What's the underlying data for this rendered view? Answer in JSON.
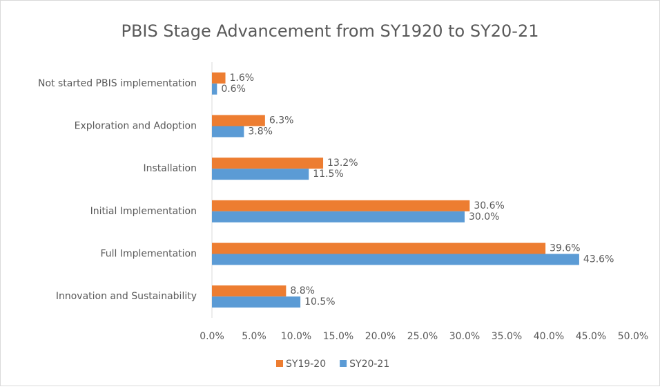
{
  "chart_data": {
    "type": "hbar",
    "title": "PBIS Stage Advancement from SY1920 to SY20-21",
    "categories": [
      "Not started PBIS implementation",
      "Exploration and Adoption",
      "Installation",
      "Initial Implementation",
      "Full Implementation",
      "Innovation and Sustainability"
    ],
    "series": [
      {
        "name": "SY19-20",
        "color": "#ed7d31",
        "values": [
          1.6,
          6.3,
          13.2,
          30.6,
          39.6,
          8.8
        ],
        "value_labels": [
          "1.6%",
          "6.3%",
          "13.2%",
          "30.6%",
          "39.6%",
          "8.8%"
        ]
      },
      {
        "name": "SY20-21",
        "color": "#5b9bd5",
        "values": [
          0.6,
          3.8,
          11.5,
          30.0,
          43.6,
          10.5
        ],
        "value_labels": [
          "0.6%",
          "3.8%",
          "11.5%",
          "30.0%",
          "43.6%",
          "10.5%"
        ]
      }
    ],
    "xlim": [
      0,
      50
    ],
    "xticks": [
      {
        "value": 0,
        "label": "0.0%"
      },
      {
        "value": 5,
        "label": "5.0%"
      },
      {
        "value": 10,
        "label": "10.0%"
      },
      {
        "value": 15,
        "label": "15.0%"
      },
      {
        "value": 20,
        "label": "20.0%"
      },
      {
        "value": 25,
        "label": "25.0%"
      },
      {
        "value": 30,
        "label": "30.0%"
      },
      {
        "value": 35,
        "label": "35.0%"
      },
      {
        "value": 40,
        "label": "40.0%"
      },
      {
        "value": 45,
        "label": "45.0%"
      },
      {
        "value": 50,
        "label": "50.0%"
      }
    ],
    "legend": "bottom"
  }
}
